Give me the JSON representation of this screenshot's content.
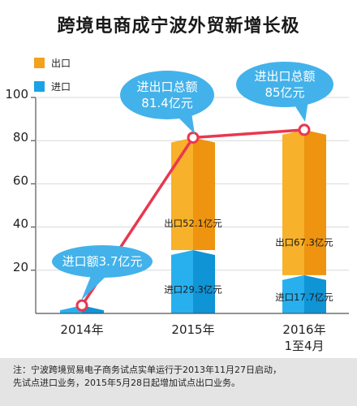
{
  "title": "跨境电商成宁波外贸新增长极",
  "legend": [
    {
      "label": "出口",
      "color": "#f3a11f"
    },
    {
      "label": "进口",
      "color": "#1aa3e6"
    }
  ],
  "note": {
    "line1": "注：宁波跨境贸易电子商务试点实单运行于2013年11月27日启动，",
    "line2": "先试点进口业务，2015年5月28日起增加试点出口业务。"
  },
  "chart_data": {
    "type": "bar",
    "categories": [
      "2014年",
      "2015年",
      "2016年\n1至4月"
    ],
    "series": [
      {
        "name": "进口",
        "values": [
          3.7,
          29.3,
          17.7
        ],
        "color": "#1aa3e6"
      },
      {
        "name": "出口",
        "values": [
          0,
          52.1,
          67.3
        ],
        "color": "#f3a11f"
      }
    ],
    "line": {
      "values": [
        3.7,
        81.4,
        85
      ],
      "color": "#e8384f"
    },
    "ylim": [
      0,
      100
    ],
    "yticks": [
      20,
      40,
      60,
      80,
      100
    ],
    "bar_labels": [
      {
        "category": 1,
        "series": "出口",
        "text": "出口52.1亿元"
      },
      {
        "category": 1,
        "series": "进口",
        "text": "进口29.3亿元"
      },
      {
        "category": 2,
        "series": "出口",
        "text": "出口67.3亿元"
      },
      {
        "category": 2,
        "series": "进口",
        "text": "进口17.7亿元"
      }
    ],
    "callouts": [
      {
        "category": 0,
        "lines": [
          "进口额3.7亿元"
        ]
      },
      {
        "category": 1,
        "lines": [
          "进出口总额",
          "81.4亿元"
        ]
      },
      {
        "category": 2,
        "lines": [
          "进出口总额",
          "85亿元"
        ]
      }
    ]
  }
}
